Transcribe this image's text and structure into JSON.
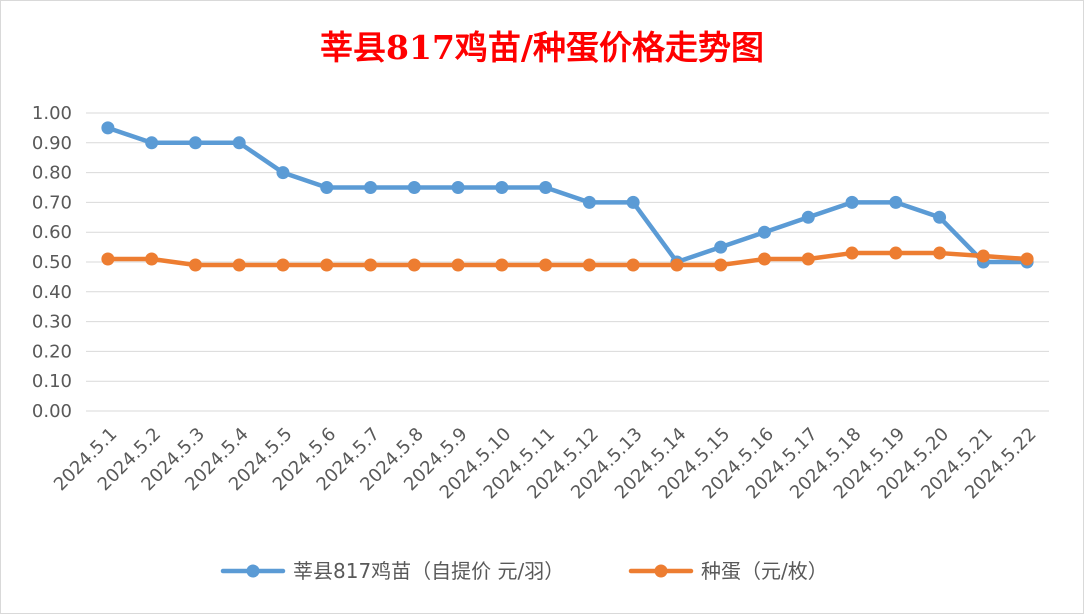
{
  "chart_data": {
    "type": "line",
    "title": "莘县817鸡苗/种蛋价格走势图",
    "xlabel": "",
    "ylabel": "",
    "ylim": [
      0,
      1.0
    ],
    "yticks": [
      "0.00",
      "0.10",
      "0.20",
      "0.30",
      "0.40",
      "0.50",
      "0.60",
      "0.70",
      "0.80",
      "0.90",
      "1.00"
    ],
    "grid": true,
    "legend_position": "bottom",
    "categories": [
      "2024.5.1",
      "2024.5.2",
      "2024.5.3",
      "2024.5.4",
      "2024.5.5",
      "2024.5.6",
      "2024.5.7",
      "2024.5.8",
      "2024.5.9",
      "2024.5.10",
      "2024.5.11",
      "2024.5.12",
      "2024.5.13",
      "2024.5.14",
      "2024.5.15",
      "2024.5.16",
      "2024.5.17",
      "2024.5.18",
      "2024.5.19",
      "2024.5.20",
      "2024.5.21",
      "2024.5.22"
    ],
    "series": [
      {
        "name": "莘县817鸡苗（自提价 元/羽）",
        "color": "#5b9bd5",
        "values": [
          0.95,
          0.9,
          0.9,
          0.9,
          0.8,
          0.75,
          0.75,
          0.75,
          0.75,
          0.75,
          0.75,
          0.7,
          0.7,
          0.5,
          0.55,
          0.6,
          0.65,
          0.7,
          0.7,
          0.65,
          0.5,
          0.5
        ]
      },
      {
        "name": "种蛋（元/枚）",
        "color": "#ed7d31",
        "values": [
          0.51,
          0.51,
          0.49,
          0.49,
          0.49,
          0.49,
          0.49,
          0.49,
          0.49,
          0.49,
          0.49,
          0.49,
          0.49,
          0.49,
          0.49,
          0.51,
          0.51,
          0.53,
          0.53,
          0.53,
          0.52,
          0.51
        ]
      }
    ]
  }
}
